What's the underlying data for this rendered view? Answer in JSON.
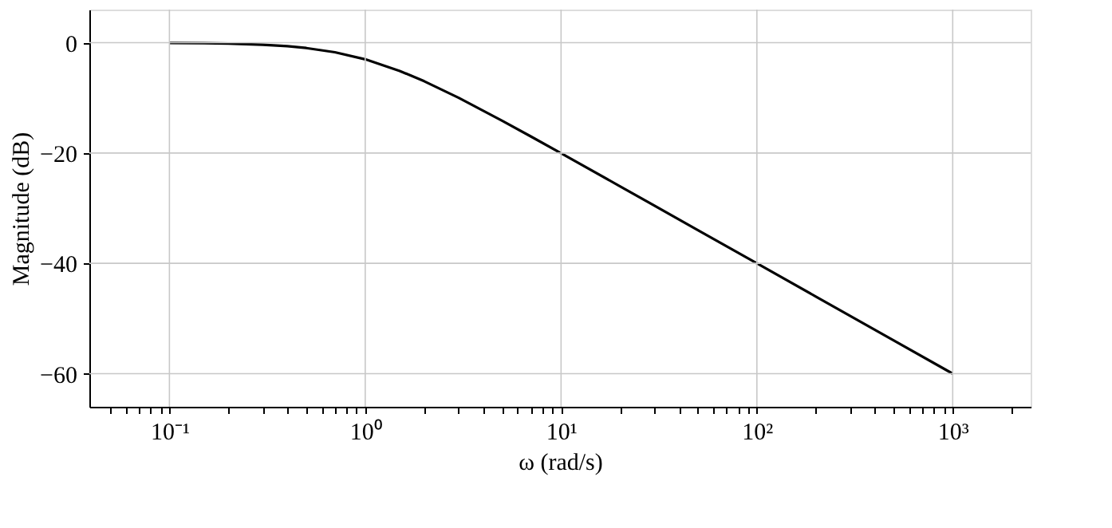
{
  "chart_data": {
    "type": "line",
    "xlabel": "ω (rad/s)",
    "ylabel": "Magnitude (dB)",
    "log": "x",
    "grid": true,
    "x": [
      0.1,
      0.15,
      0.2,
      0.3,
      0.4,
      0.5,
      0.7,
      1,
      1.5,
      2,
      3,
      5,
      7,
      10,
      20,
      50,
      100,
      200,
      500,
      1000
    ],
    "series": [
      {
        "color": "#000000",
        "values": [
          -0.04,
          -0.1,
          -0.17,
          -0.37,
          -0.64,
          -0.97,
          -1.73,
          -3.01,
          -5.12,
          -6.99,
          -10,
          -14.15,
          -16.99,
          -20.04,
          -26.03,
          -33.98,
          -40,
          -46.02,
          -53.98,
          -60
        ]
      }
    ],
    "xlim": [
      0.039,
      2500
    ],
    "ylim": [
      -66,
      6
    ],
    "xticks": [
      {
        "value": 0.05,
        "label": null
      },
      {
        "value": 0.06,
        "label": null
      },
      {
        "value": 0.07,
        "label": null
      },
      {
        "value": 0.08,
        "label": null
      },
      {
        "value": 0.09,
        "label": null
      },
      {
        "value": 0.1,
        "label": "10⁻¹"
      },
      {
        "value": 0.2,
        "label": null
      },
      {
        "value": 0.3,
        "label": null
      },
      {
        "value": 0.4,
        "label": null
      },
      {
        "value": 0.5,
        "label": null
      },
      {
        "value": 0.6,
        "label": null
      },
      {
        "value": 0.7,
        "label": null
      },
      {
        "value": 0.8,
        "label": null
      },
      {
        "value": 0.9,
        "label": null
      },
      {
        "value": 1,
        "label": "10⁰"
      },
      {
        "value": 2,
        "label": null
      },
      {
        "value": 3,
        "label": null
      },
      {
        "value": 4,
        "label": null
      },
      {
        "value": 5,
        "label": null
      },
      {
        "value": 6,
        "label": null
      },
      {
        "value": 7,
        "label": null
      },
      {
        "value": 8,
        "label": null
      },
      {
        "value": 9,
        "label": null
      },
      {
        "value": 10,
        "label": "10¹"
      },
      {
        "value": 20,
        "label": null
      },
      {
        "value": 30,
        "label": null
      },
      {
        "value": 40,
        "label": null
      },
      {
        "value": 50,
        "label": null
      },
      {
        "value": 60,
        "label": null
      },
      {
        "value": 70,
        "label": null
      },
      {
        "value": 80,
        "label": null
      },
      {
        "value": 90,
        "label": null
      },
      {
        "value": 100,
        "label": "10²"
      },
      {
        "value": 200,
        "label": null
      },
      {
        "value": 300,
        "label": null
      },
      {
        "value": 400,
        "label": null
      },
      {
        "value": 500,
        "label": null
      },
      {
        "value": 600,
        "label": null
      },
      {
        "value": 700,
        "label": null
      },
      {
        "value": 800,
        "label": null
      },
      {
        "value": 900,
        "label": null
      },
      {
        "value": 1000,
        "label": "10³"
      },
      {
        "value": 2000,
        "label": null
      }
    ],
    "yticks": [
      {
        "value": -60,
        "label": "−60"
      },
      {
        "value": -40,
        "label": "−40"
      },
      {
        "value": -20,
        "label": "−20"
      },
      0
    ]
  }
}
